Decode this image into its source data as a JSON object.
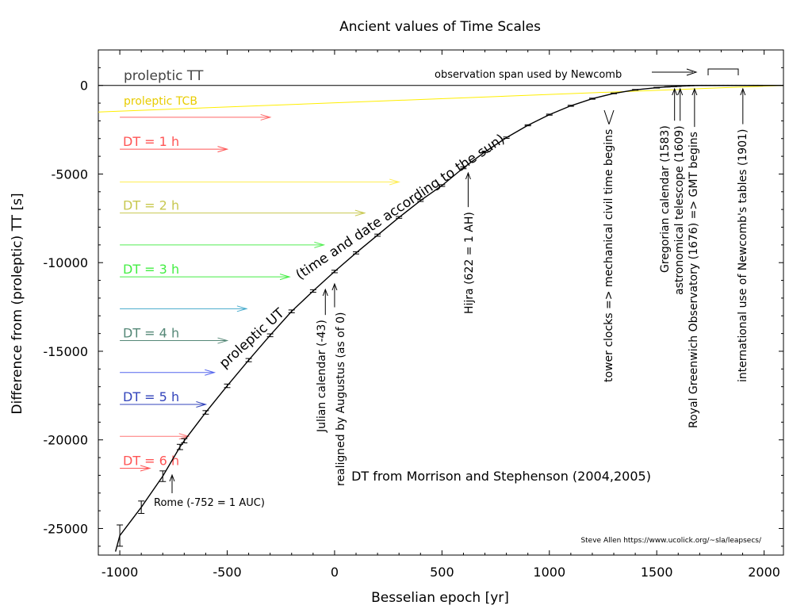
{
  "chart_data": {
    "type": "scatter",
    "title": "Ancient values of Time Scales",
    "xlabel": "Besselian epoch [yr]",
    "ylabel": "Difference from (proleptic) TT [s]",
    "xlim": [
      -1100,
      2090
    ],
    "ylim": [
      -26500,
      2000
    ],
    "x_ticks": [
      -1000,
      -500,
      0,
      500,
      1000,
      1500,
      2000
    ],
    "x_tick_labels": [
      "-1000",
      "-500",
      "0",
      "500",
      "1000",
      "1500",
      "2000"
    ],
    "y_ticks": [
      0,
      -5000,
      -10000,
      -15000,
      -20000,
      -25000
    ],
    "y_tick_labels": [
      "0",
      "-5000",
      "-10000",
      "-15000",
      "-20000",
      "-25000"
    ],
    "grid": false,
    "series": [
      {
        "name": "proleptic UT",
        "color": "#000000",
        "style": "errorbars-with-curve",
        "points": [
          {
            "x": -1000,
            "y": -25400,
            "err": 600
          },
          {
            "x": -900,
            "y": -23800,
            "err": 350
          },
          {
            "x": -800,
            "y": -22050,
            "err": 300
          },
          {
            "x": -720,
            "y": -20400,
            "err": 150
          },
          {
            "x": -700,
            "y": -20050,
            "err": 120
          },
          {
            "x": -600,
            "y": -18450,
            "err": 100
          },
          {
            "x": -500,
            "y": -16950,
            "err": 100
          },
          {
            "x": -400,
            "y": -15500,
            "err": 90
          },
          {
            "x": -300,
            "y": -14100,
            "err": 80
          },
          {
            "x": -200,
            "y": -12750,
            "err": 80
          },
          {
            "x": -100,
            "y": -11600,
            "err": 70
          },
          {
            "x": 0,
            "y": -10500,
            "err": 70
          },
          {
            "x": 100,
            "y": -9450,
            "err": 60
          },
          {
            "x": 200,
            "y": -8450,
            "err": 60
          },
          {
            "x": 300,
            "y": -7450,
            "err": 50
          },
          {
            "x": 400,
            "y": -6500,
            "err": 50
          },
          {
            "x": 500,
            "y": -5650,
            "err": 50
          },
          {
            "x": 600,
            "y": -4650,
            "err": 50
          },
          {
            "x": 700,
            "y": -3750,
            "err": 40
          },
          {
            "x": 800,
            "y": -2950,
            "err": 40
          },
          {
            "x": 900,
            "y": -2250,
            "err": 30
          },
          {
            "x": 1000,
            "y": -1650,
            "err": 30
          },
          {
            "x": 1100,
            "y": -1150,
            "err": 30
          },
          {
            "x": 1200,
            "y": -750,
            "err": 30
          },
          {
            "x": 1300,
            "y": -450,
            "err": 20
          },
          {
            "x": 1400,
            "y": -250,
            "err": 20
          },
          {
            "x": 1500,
            "y": -130,
            "err": 20
          },
          {
            "x": 1550,
            "y": -80,
            "err": 10
          },
          {
            "x": 1580,
            "y": -60,
            "err": 10
          },
          {
            "x": 1600,
            "y": -50,
            "err": 10
          },
          {
            "x": 1620,
            "y": -30,
            "err": 10
          },
          {
            "x": 1640,
            "y": -20,
            "err": 10
          },
          {
            "x": 1660,
            "y": -10,
            "err": 10
          },
          {
            "x": 1680,
            "y": -5,
            "err": 10
          },
          {
            "x": 1700,
            "y": 0,
            "err": 10
          },
          {
            "x": 1720,
            "y": 0,
            "err": 10
          },
          {
            "x": 1740,
            "y": 0,
            "err": 10
          },
          {
            "x": 1760,
            "y": 0,
            "err": 10
          },
          {
            "x": 1780,
            "y": 0,
            "err": 10
          },
          {
            "x": 1800,
            "y": 0,
            "err": 10
          },
          {
            "x": 1820,
            "y": 0,
            "err": 10
          },
          {
            "x": 1840,
            "y": 0,
            "err": 10
          },
          {
            "x": 1860,
            "y": 0,
            "err": 10
          },
          {
            "x": 1880,
            "y": 0,
            "err": 10
          },
          {
            "x": 1900,
            "y": 0,
            "err": 10
          },
          {
            "x": 1920,
            "y": 0,
            "err": 10
          },
          {
            "x": 1940,
            "y": 0,
            "err": 10
          },
          {
            "x": 1960,
            "y": 0,
            "err": 10
          },
          {
            "x": 1980,
            "y": 0,
            "err": 10
          }
        ]
      },
      {
        "name": "proleptic TT",
        "color": "#000000",
        "x": [
          -1100,
          2090
        ],
        "y": [
          0,
          0
        ]
      },
      {
        "name": "proleptic TCB",
        "color": "#ffee00",
        "x": [
          -1100,
          2090
        ],
        "y": [
          -1500,
          0
        ]
      }
    ],
    "dt_arrows": [
      {
        "y": -1800,
        "x_start": -1000,
        "x_end": -300,
        "color": "#ff6666"
      },
      {
        "y": -3600,
        "x_start": -1000,
        "x_end": -500,
        "color": "#ff5555"
      },
      {
        "y": -5450,
        "x_start": -1000,
        "x_end": 300,
        "color": "#ffee55"
      },
      {
        "y": -7200,
        "x_start": -1000,
        "x_end": 140,
        "color": "#c8c850"
      },
      {
        "y": -9000,
        "x_start": -1000,
        "x_end": -50,
        "color": "#55ee55"
      },
      {
        "y": -10800,
        "x_start": -1000,
        "x_end": -210,
        "color": "#44ee44"
      },
      {
        "y": -12600,
        "x_start": -1000,
        "x_end": -410,
        "color": "#44aacc"
      },
      {
        "y": -14400,
        "x_start": -1000,
        "x_end": -500,
        "color": "#558877"
      },
      {
        "y": -16200,
        "x_start": -1000,
        "x_end": -560,
        "color": "#5566ee"
      },
      {
        "y": -18000,
        "x_start": -1000,
        "x_end": -600,
        "color": "#3344bb"
      },
      {
        "y": -19800,
        "x_start": -1000,
        "x_end": -680,
        "color": "#ff7777"
      },
      {
        "y": -21600,
        "x_start": -1000,
        "x_end": -860,
        "color": "#ff5555"
      }
    ],
    "dt_labels": [
      {
        "text": "DT = 1 h",
        "y": -3150,
        "color": "#ff5555"
      },
      {
        "text": "DT = 2 h",
        "y": -6750,
        "color": "#c8c850"
      },
      {
        "text": "DT = 3 h",
        "y": -10350,
        "color": "#44ee44"
      },
      {
        "text": "DT = 4 h",
        "y": -13950,
        "color": "#558877"
      },
      {
        "text": "DT = 5 h",
        "y": -17550,
        "color": "#3344bb"
      },
      {
        "text": "DT = 6 h",
        "y": -21150,
        "color": "#ff5555"
      }
    ],
    "annotations": {
      "proleptic_tt": "proleptic TT",
      "proleptic_tcb": "proleptic TCB",
      "proleptic_ut": "proleptic UT",
      "time_and_date": "(time and date according to the sun)",
      "dt_source": "DT from Morrison and Stephenson (2004,2005)",
      "newcomb_span": "observation span used by Newcomb",
      "credit": "Steve Allen  https://www.ucolick.org/~sla/leapsecs/",
      "rome": "Rome (-752 = 1 AUC)",
      "julian": "Julian calendar (-43)",
      "augustus": "realigned by Augustus (as of 0)",
      "hijra": "Hijra (622 = 1 AH)",
      "tower_clocks": "tower clocks => mechanical civil time begins",
      "gregorian": "Gregorian calendar (1583)",
      "telescope": "astronomical telescope (1609)",
      "greenwich": "Royal Greenwich Observatory (1676) => GMT begins",
      "newcomb_tables": "international use of Newcomb's tables (1901)"
    },
    "event_markers": [
      {
        "key": "julian",
        "x": -43
      },
      {
        "key": "augustus",
        "x": 0
      },
      {
        "key": "hijra",
        "x": 622
      },
      {
        "key": "tower_clocks",
        "x": 1283
      },
      {
        "key": "gregorian",
        "x": 1583
      },
      {
        "key": "telescope",
        "x": 1609
      },
      {
        "key": "greenwich",
        "x": 1676
      },
      {
        "key": "newcomb_tables",
        "x": 1901
      }
    ]
  }
}
